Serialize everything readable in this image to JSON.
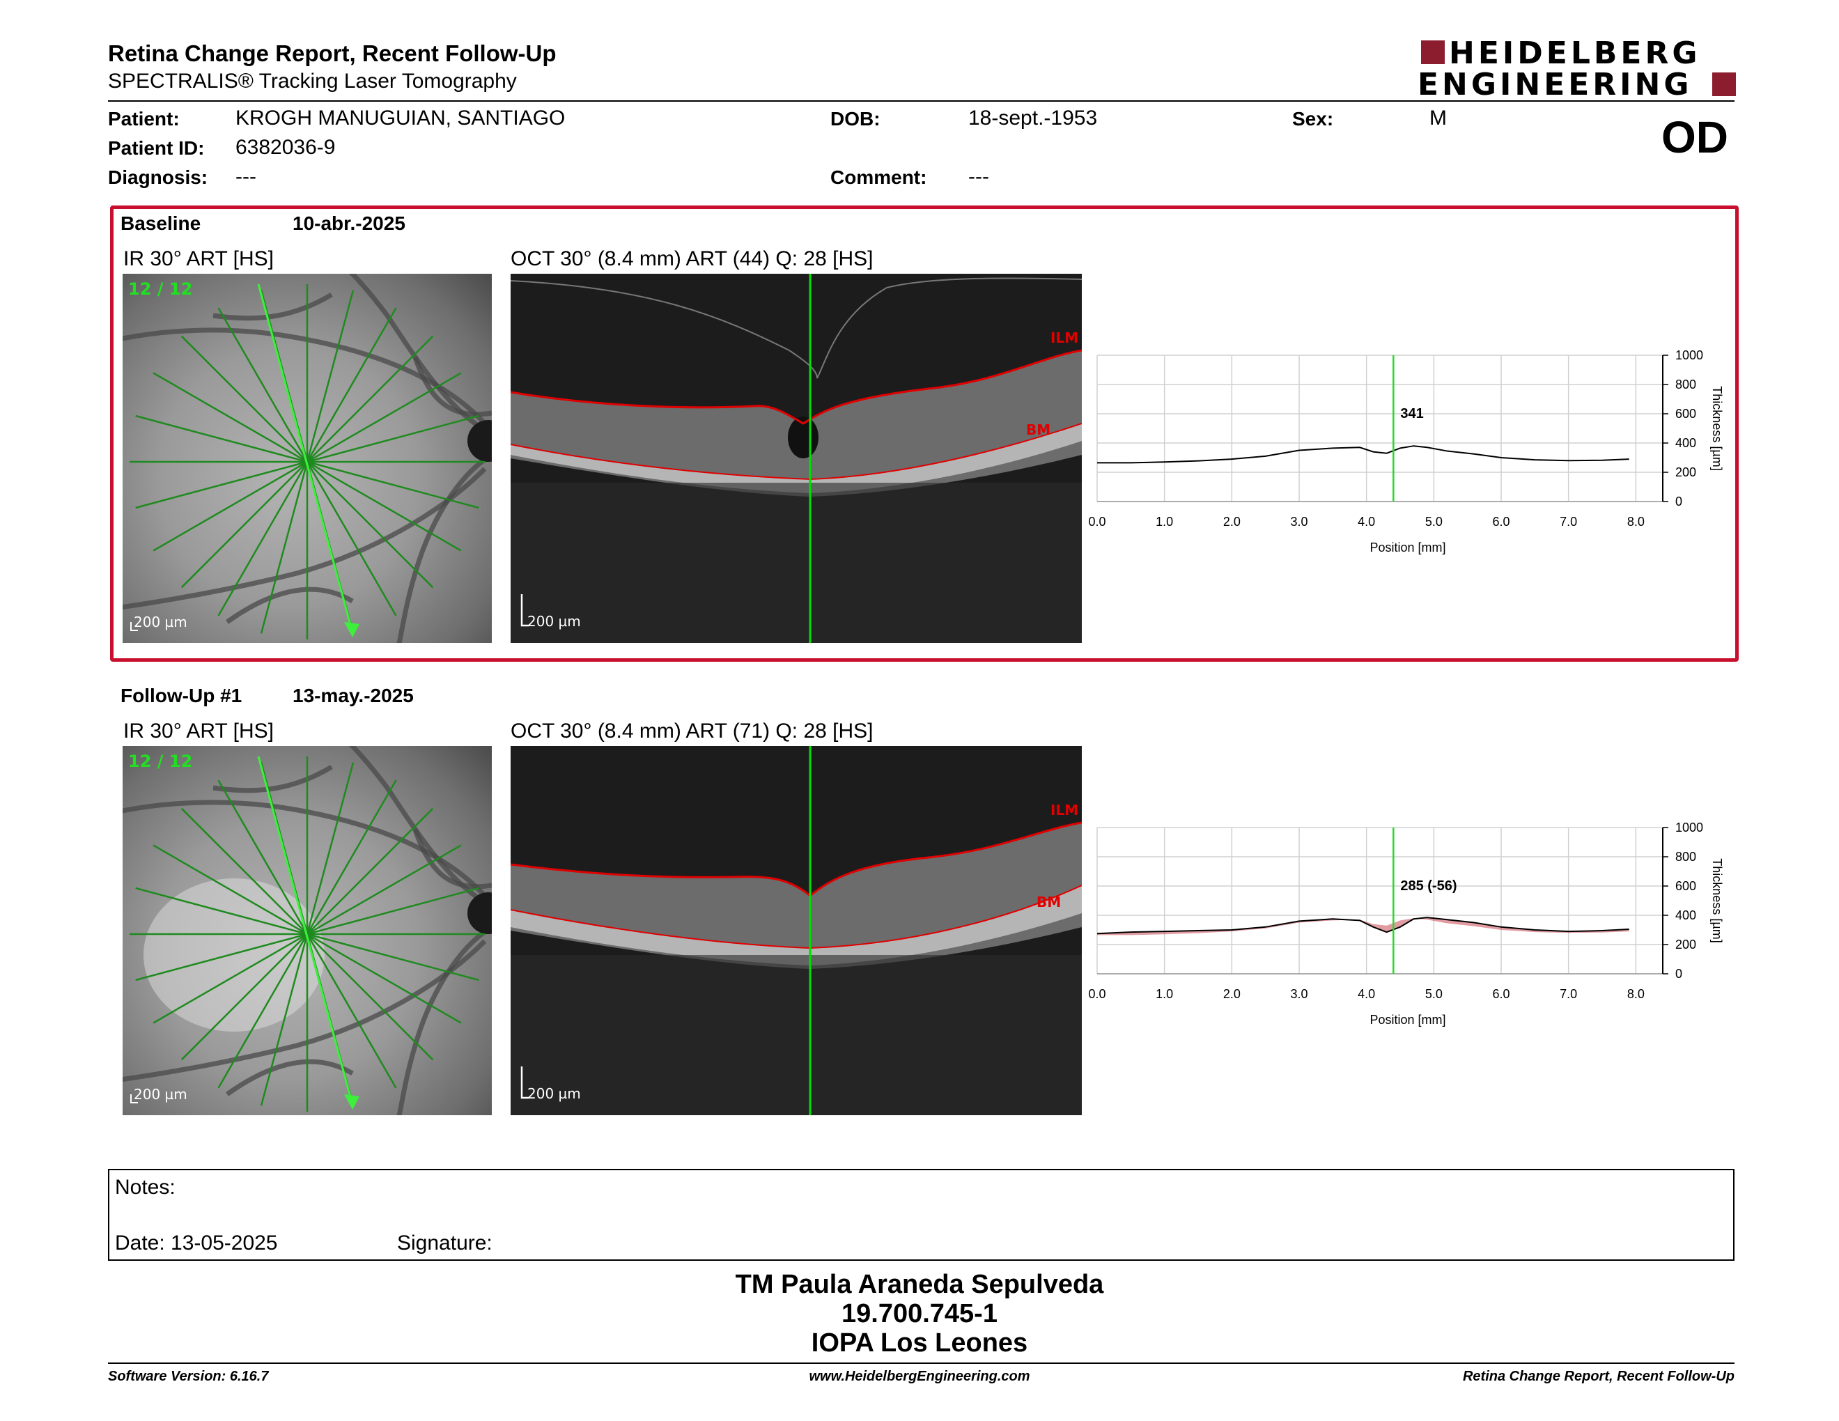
{
  "header": {
    "title": "Retina Change Report, Recent Follow-Up",
    "subtitle": "SPECTRALIS® Tracking Laser Tomography",
    "logo_line1": "HEIDELBERG",
    "logo_line2": "ENGINEERING",
    "eye": "OD"
  },
  "patient": {
    "name_label": "Patient:",
    "name": "KROGH MANUGUIAN, SANTIAGO",
    "id_label": "Patient ID:",
    "id": "6382036-9",
    "diagnosis_label": "Diagnosis:",
    "diagnosis": "---",
    "dob_label": "DOB:",
    "dob": "18-sept.-1953",
    "comment_label": "Comment:",
    "comment": "---",
    "sex_label": "Sex:",
    "sex": "M"
  },
  "baseline": {
    "label": "Baseline",
    "date": "10-abr.-2025",
    "ir_title": "IR 30° ART [HS]",
    "oct_title": "OCT 30° (8.4 mm) ART (44) Q: 28 [HS]",
    "scan_count": "12 / 12",
    "ir_scale": "200 µm",
    "oct_scale": "200 µm",
    "ilm": "ILM",
    "bm": "BM"
  },
  "followup": {
    "label": "Follow-Up #1",
    "date": "13-may.-2025",
    "ir_title": "IR 30° ART [HS]",
    "oct_title": "OCT 30° (8.4 mm) ART (71) Q: 28 [HS]",
    "scan_count": "12 / 12",
    "ir_scale": "200 µm",
    "oct_scale": "200 µm",
    "ilm": "ILM",
    "bm": "BM"
  },
  "notes": {
    "label": "Notes:",
    "date_label": "Date: 13-05-2025",
    "signature_label": "Signature:"
  },
  "signoff": {
    "name": "TM Paula Araneda Sepulveda",
    "rut": "19.700.745-1",
    "clinic": "IOPA Los Leones"
  },
  "footer": {
    "left": "Software Version: 6.16.7",
    "center": "www.HeidelbergEngineering.com",
    "right": "Retina Change Report, Recent Follow-Up"
  },
  "colors": {
    "frame": "#c8102e",
    "scanline": "#00e000",
    "scanline_dark": "#1f8a1f",
    "ilm": "#e00000",
    "brand": "#8c1d2e"
  },
  "chart_data": [
    {
      "type": "line",
      "xlabel": "Position [mm]",
      "ylabel": "Thickness [µm]",
      "xlim": [
        0,
        8.4
      ],
      "ylim": [
        0,
        1000
      ],
      "xticks": [
        "0.0",
        "1.0",
        "2.0",
        "3.0",
        "4.0",
        "5.0",
        "6.0",
        "7.0",
        "8.0"
      ],
      "yticks": [
        "0",
        "200",
        "400",
        "600",
        "800",
        "1000"
      ],
      "marker_x": 4.4,
      "marker_label": "341",
      "series": [
        {
          "x": [
            0,
            0.5,
            1,
            1.5,
            2,
            2.5,
            3,
            3.5,
            3.9,
            4.1,
            4.3,
            4.5,
            4.7,
            4.9,
            5.2,
            5.6,
            6,
            6.5,
            7,
            7.5,
            7.9
          ],
          "values": [
            265,
            265,
            270,
            278,
            290,
            310,
            350,
            365,
            370,
            340,
            330,
            365,
            380,
            370,
            345,
            325,
            300,
            285,
            280,
            282,
            290
          ]
        }
      ]
    },
    {
      "type": "line",
      "xlabel": "Position [mm]",
      "ylabel": "Thickness [µm]",
      "xlim": [
        0,
        8.4
      ],
      "ylim": [
        0,
        1000
      ],
      "xticks": [
        "0.0",
        "1.0",
        "2.0",
        "3.0",
        "4.0",
        "5.0",
        "6.0",
        "7.0",
        "8.0"
      ],
      "yticks": [
        "0",
        "200",
        "400",
        "600",
        "800",
        "1000"
      ],
      "marker_x": 4.4,
      "marker_label": "285 (-56)",
      "series": [
        {
          "x": [
            0,
            0.5,
            1,
            1.5,
            2,
            2.5,
            3,
            3.5,
            3.9,
            4.1,
            4.3,
            4.5,
            4.7,
            4.9,
            5.2,
            5.6,
            6,
            6.5,
            7,
            7.5,
            7.9
          ],
          "values": [
            275,
            285,
            290,
            295,
            300,
            320,
            360,
            375,
            365,
            320,
            285,
            320,
            375,
            385,
            370,
            350,
            320,
            300,
            290,
            295,
            305
          ]
        },
        {
          "x": [
            0,
            0.5,
            1,
            1.5,
            2,
            2.5,
            3,
            3.5,
            3.9,
            4.1,
            4.3,
            4.5,
            4.7,
            4.9,
            5.2,
            5.6,
            6,
            6.5,
            7,
            7.5,
            7.9
          ],
          "values": [
            265,
            265,
            270,
            278,
            290,
            310,
            350,
            365,
            370,
            340,
            330,
            365,
            380,
            370,
            345,
            325,
            300,
            285,
            280,
            282,
            290
          ]
        }
      ]
    }
  ]
}
